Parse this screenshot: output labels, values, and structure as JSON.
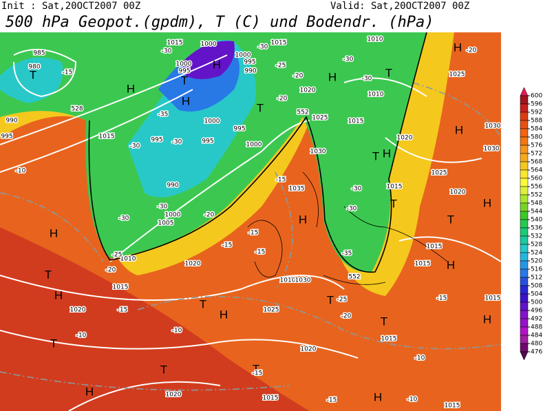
{
  "header": {
    "init": "Init : Sat,20OCT2007 00Z",
    "valid": "Valid: Sat,20OCT2007 00Z",
    "title": "500 hPa Geopot.(gpdm), T (C) und Bodendr. (hPa)"
  },
  "colorbar": {
    "ticks": [
      600,
      596,
      592,
      588,
      584,
      580,
      576,
      572,
      568,
      564,
      560,
      556,
      552,
      548,
      544,
      540,
      536,
      532,
      528,
      524,
      520,
      516,
      512,
      508,
      504,
      500,
      496,
      492,
      488,
      484,
      480,
      476
    ],
    "colors": [
      "#e6195a",
      "#a0141e",
      "#c81e1e",
      "#dc3c14",
      "#e65014",
      "#f06414",
      "#f07814",
      "#f5961e",
      "#f5aa1e",
      "#f5c81e",
      "#fae632",
      "#fafa3c",
      "#dcf03c",
      "#aae632",
      "#78d228",
      "#3cc828",
      "#28c850",
      "#1ec878",
      "#1ec8a0",
      "#28c8c8",
      "#28b4dc",
      "#2896e6",
      "#2878e6",
      "#2850dc",
      "#2828d2",
      "#3c14c8",
      "#6414c8",
      "#8214c8",
      "#9614c8",
      "#b414c8",
      "#a01ea0",
      "#6e0a6e",
      "#500a50"
    ]
  },
  "map_labels": [
    "T",
    "H",
    "H",
    "T",
    "H",
    "T",
    "H",
    "T",
    "H",
    "H",
    "T",
    "H",
    "T",
    "T",
    "H",
    "H",
    "H",
    "T",
    "H",
    "T",
    "H",
    "T",
    "T",
    "T",
    "H",
    "H",
    "T",
    "H",
    "T",
    "H",
    "1015",
    "1015",
    "1000",
    "985",
    "980",
    "995",
    "990",
    "1000",
    "1000",
    "995",
    "990",
    "995",
    "1015",
    "1000",
    "995",
    "995",
    "995",
    "1000",
    "990",
    "1000",
    "1005",
    "1010",
    "1015",
    "1020",
    "1020",
    "1025",
    "1030",
    "1035",
    "1010",
    "1015",
    "1020",
    "1025",
    "1020",
    "1025",
    "1030",
    "1030",
    "1015",
    "1015",
    "1015",
    "1020",
    "1025",
    "1015",
    "1020",
    "1020",
    "1015",
    "1015",
    "1010",
    "1030",
    "1010",
    "1015",
    "-15",
    "-30",
    "-35",
    "-30",
    "-30",
    "-30",
    "-30",
    "-30",
    "-25",
    "-20",
    "-20",
    "-30",
    "-30",
    "-20",
    "-15",
    "-15",
    "-15",
    "-15",
    "-20",
    "-25",
    "-20",
    "-10",
    "-15",
    "-10",
    "-10",
    "-15",
    "-15",
    "-10",
    "-10",
    "-15",
    "-25",
    "-20",
    "-30",
    "-30",
    "-35",
    "552",
    "552",
    "528"
  ]
}
